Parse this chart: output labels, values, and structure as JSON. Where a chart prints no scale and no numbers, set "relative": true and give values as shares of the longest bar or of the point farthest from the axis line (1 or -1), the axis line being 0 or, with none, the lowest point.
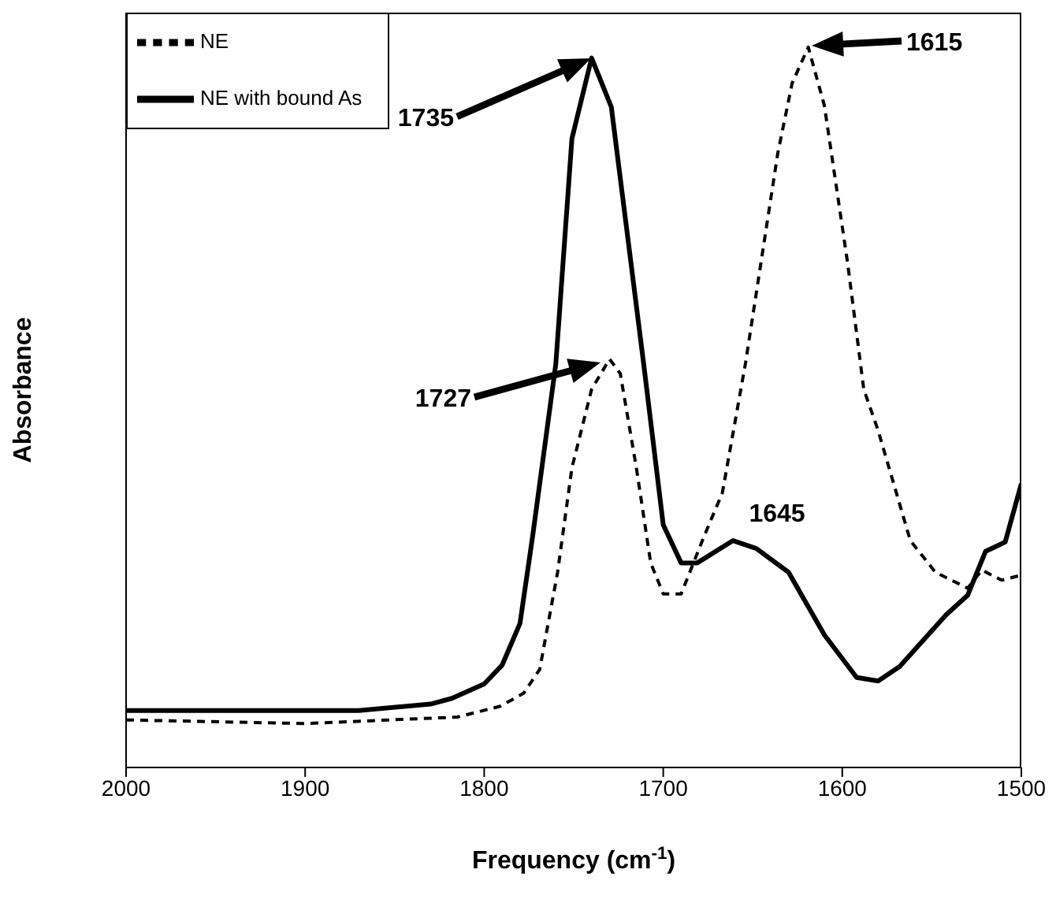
{
  "chart_data": {
    "type": "line",
    "relative": true,
    "xlabel": "Frequency (cm$^{-1}$)",
    "ylabel": "Absorbance",
    "xlim": [
      2000,
      1500
    ],
    "xticks": [
      2000,
      1900,
      1800,
      1700,
      1600,
      1500
    ],
    "legend": "top left",
    "marker": "none",
    "series": [
      {
        "name": "NE",
        "color": "#000000",
        "line_style": "dashed",
        "x": [
          2000,
          1900,
          1815,
          1791,
          1778,
          1769,
          1759,
          1751,
          1740,
          1730,
          1724,
          1715,
          1707,
          1700,
          1690,
          1677,
          1667,
          1654,
          1636,
          1628,
          1619,
          1610,
          1597,
          1588,
          1580,
          1562,
          1548,
          1530,
          1522,
          1511,
          1500
        ],
        "values": [
          0.066,
          0.061,
          0.07,
          0.085,
          0.103,
          0.136,
          0.271,
          0.416,
          0.525,
          0.567,
          0.547,
          0.416,
          0.284,
          0.241,
          0.241,
          0.322,
          0.381,
          0.562,
          0.853,
          0.95,
          1,
          0.919,
          0.7,
          0.525,
          0.468,
          0.315,
          0.271,
          0.249,
          0.274,
          0.26,
          0.267
        ]
      },
      {
        "name": "NE with bound As",
        "color": "#000000",
        "line_style": "solid",
        "x": [
          2000,
          1870,
          1830,
          1818,
          1800,
          1790,
          1780,
          1773,
          1760,
          1751,
          1740,
          1729,
          1711,
          1700,
          1690,
          1681,
          1661,
          1648,
          1630,
          1610,
          1592,
          1580,
          1568,
          1542,
          1530,
          1520,
          1509,
          1500
        ],
        "values": [
          0.079,
          0.079,
          0.088,
          0.096,
          0.116,
          0.142,
          0.2,
          0.32,
          0.56,
          0.873,
          0.985,
          0.917,
          0.562,
          0.337,
          0.284,
          0.284,
          0.315,
          0.304,
          0.271,
          0.184,
          0.125,
          0.12,
          0.14,
          0.212,
          0.239,
          0.3,
          0.313,
          0.394
        ]
      }
    ],
    "annotations": [
      "1735",
      "1615",
      "1727",
      "1645"
    ]
  }
}
